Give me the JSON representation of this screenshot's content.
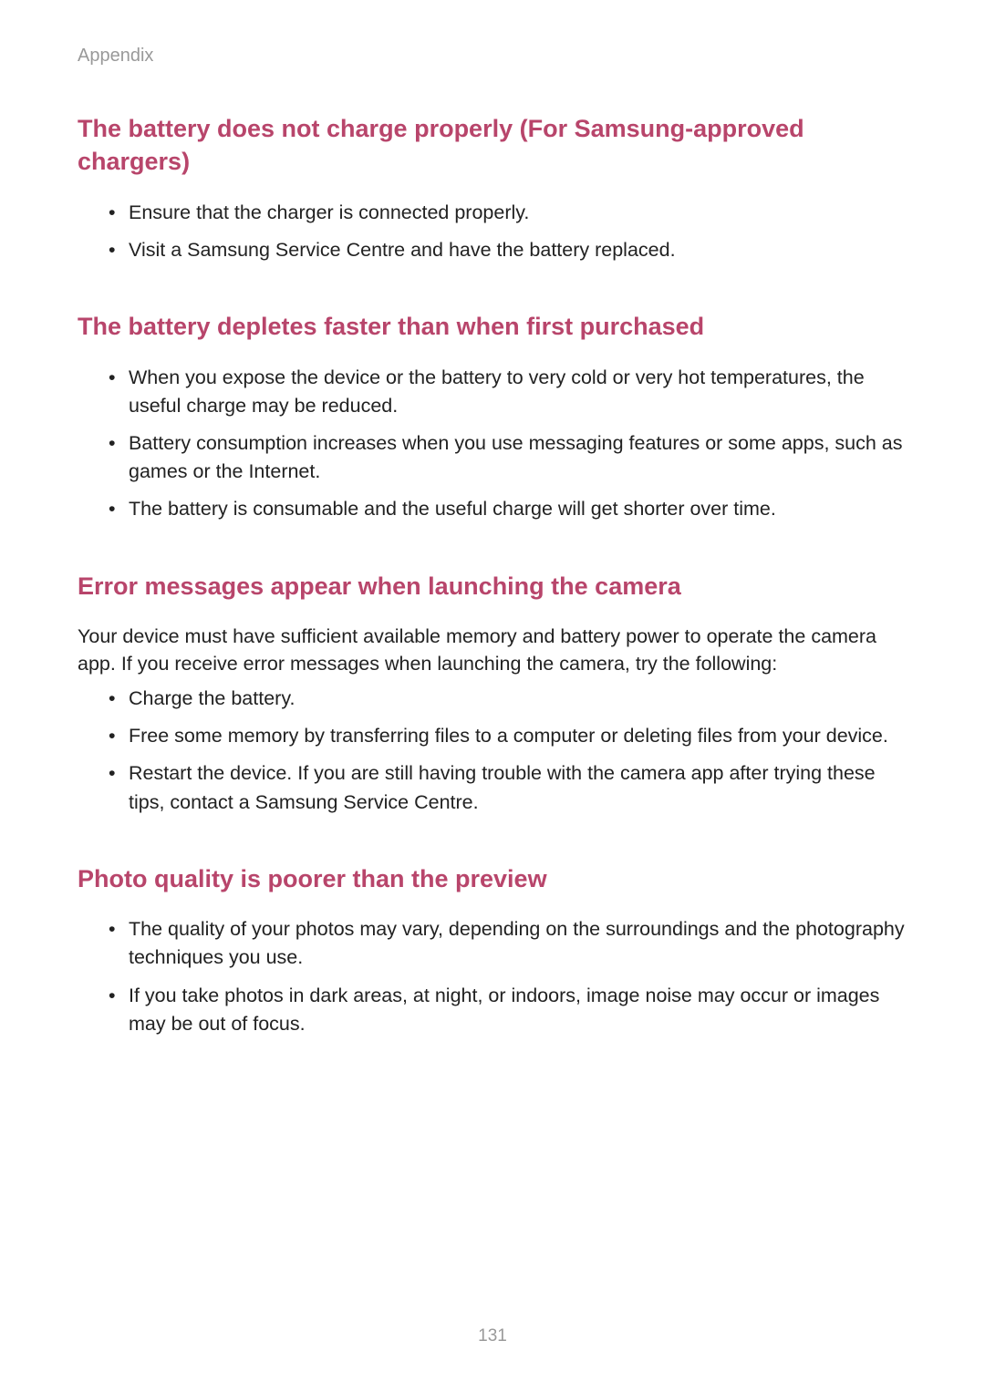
{
  "header": {
    "label": "Appendix"
  },
  "sections": [
    {
      "heading": "The battery does not charge properly (For Samsung-approved chargers)",
      "paragraph": null,
      "bullets": [
        "Ensure that the charger is connected properly.",
        "Visit a Samsung Service Centre and have the battery replaced."
      ]
    },
    {
      "heading": "The battery depletes faster than when first purchased",
      "paragraph": null,
      "bullets": [
        "When you expose the device or the battery to very cold or very hot temperatures, the useful charge may be reduced.",
        "Battery consumption increases when you use messaging features or some apps, such as games or the Internet.",
        "The battery is consumable and the useful charge will get shorter over time."
      ]
    },
    {
      "heading": "Error messages appear when launching the camera",
      "paragraph": "Your device must have sufficient available memory and battery power to operate the camera app. If you receive error messages when launching the camera, try the following:",
      "bullets": [
        "Charge the battery.",
        "Free some memory by transferring files to a computer or deleting files from your device.",
        "Restart the device. If you are still having trouble with the camera app after trying these tips, contact a Samsung Service Centre."
      ]
    },
    {
      "heading": "Photo quality is poorer than the preview",
      "paragraph": null,
      "bullets": [
        "The quality of your photos may vary, depending on the surroundings and the photography techniques you use.",
        "If you take photos in dark areas, at night, or indoors, image noise may occur or images may be out of focus."
      ]
    }
  ],
  "pageNumber": "131",
  "styling": {
    "headingColor": "#b8456b",
    "headerLabelColor": "#999999",
    "bodyTextColor": "#222222",
    "pageNumberColor": "#999999",
    "background": "#ffffff",
    "headingFontSize": 27,
    "bodyFontSize": 21.5,
    "headerLabelFontSize": 20,
    "pageNumberFontSize": 19
  }
}
